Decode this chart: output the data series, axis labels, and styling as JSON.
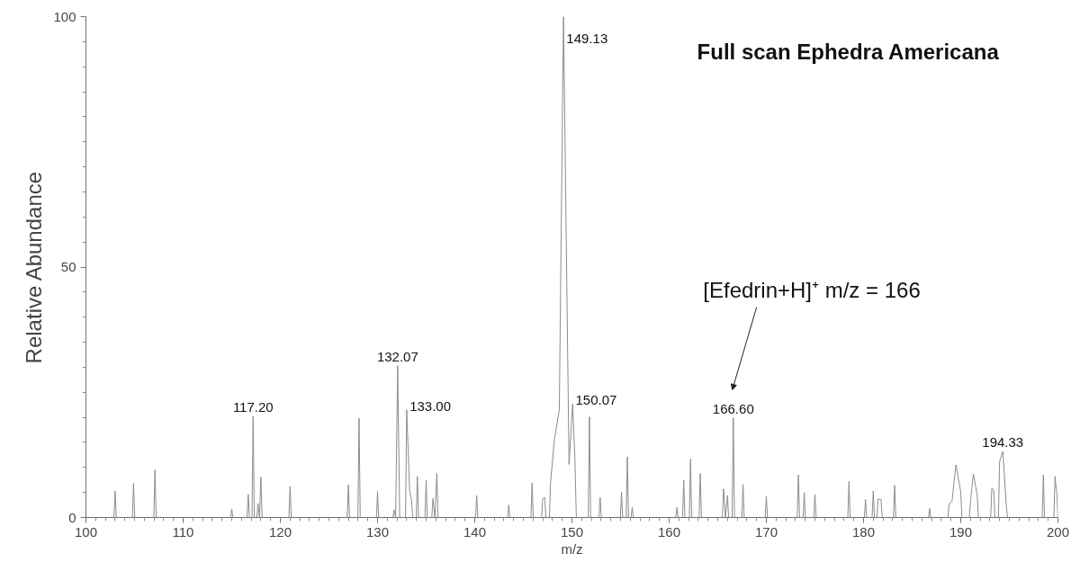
{
  "chart_data": {
    "type": "line",
    "title": "Full scan Ephedra Americana",
    "xlabel": "m/z",
    "ylabel": "Relative Abundance",
    "xlim": [
      100,
      200
    ],
    "ylim": [
      0,
      100
    ],
    "xticks": [
      100,
      {
        "value": 101,
        "label": null
      },
      {
        "value": 102,
        "label": null
      },
      {
        "value": 103,
        "label": null
      },
      {
        "value": 104,
        "label": null
      },
      {
        "value": 105,
        "label": null
      },
      {
        "value": 106,
        "label": null
      },
      {
        "value": 107,
        "label": null
      },
      {
        "value": 108,
        "label": null
      },
      {
        "value": 109,
        "label": null
      },
      110,
      {
        "value": 111,
        "label": null
      },
      {
        "value": 112,
        "label": null
      },
      {
        "value": 113,
        "label": null
      },
      {
        "value": 114,
        "label": null
      },
      {
        "value": 115,
        "label": null
      },
      {
        "value": 116,
        "label": null
      },
      {
        "value": 117,
        "label": null
      },
      {
        "value": 118,
        "label": null
      },
      {
        "value": 119,
        "label": null
      },
      120,
      {
        "value": 121,
        "label": null
      },
      {
        "value": 122,
        "label": null
      },
      {
        "value": 123,
        "label": null
      },
      {
        "value": 124,
        "label": null
      },
      {
        "value": 125,
        "label": null
      },
      {
        "value": 126,
        "label": null
      },
      {
        "value": 127,
        "label": null
      },
      {
        "value": 128,
        "label": null
      },
      {
        "value": 129,
        "label": null
      },
      130,
      {
        "value": 131,
        "label": null
      },
      {
        "value": 132,
        "label": null
      },
      {
        "value": 133,
        "label": null
      },
      {
        "value": 134,
        "label": null
      },
      {
        "value": 135,
        "label": null
      },
      {
        "value": 136,
        "label": null
      },
      {
        "value": 137,
        "label": null
      },
      {
        "value": 138,
        "label": null
      },
      {
        "value": 139,
        "label": null
      },
      140,
      {
        "value": 141,
        "label": null
      },
      {
        "value": 142,
        "label": null
      },
      {
        "value": 143,
        "label": null
      },
      {
        "value": 144,
        "label": null
      },
      {
        "value": 145,
        "label": null
      },
      {
        "value": 146,
        "label": null
      },
      {
        "value": 147,
        "label": null
      },
      {
        "value": 148,
        "label": null
      },
      {
        "value": 149,
        "label": null
      },
      150,
      {
        "value": 151,
        "label": null
      },
      {
        "value": 152,
        "label": null
      },
      {
        "value": 153,
        "label": null
      },
      {
        "value": 154,
        "label": null
      },
      {
        "value": 155,
        "label": null
      },
      {
        "value": 156,
        "label": null
      },
      {
        "value": 157,
        "label": null
      },
      {
        "value": 158,
        "label": null
      },
      {
        "value": 159,
        "label": null
      },
      160,
      {
        "value": 161,
        "label": null
      },
      {
        "value": 162,
        "label": null
      },
      {
        "value": 163,
        "label": null
      },
      {
        "value": 164,
        "label": null
      },
      {
        "value": 165,
        "label": null
      },
      {
        "value": 166,
        "label": null
      },
      {
        "value": 167,
        "label": null
      },
      {
        "value": 168,
        "label": null
      },
      {
        "value": 169,
        "label": null
      },
      170,
      {
        "value": 171,
        "label": null
      },
      {
        "value": 172,
        "label": null
      },
      {
        "value": 173,
        "label": null
      },
      {
        "value": 174,
        "label": null
      },
      {
        "value": 175,
        "label": null
      },
      {
        "value": 176,
        "label": null
      },
      {
        "value": 177,
        "label": null
      },
      {
        "value": 178,
        "label": null
      },
      {
        "value": 179,
        "label": null
      },
      180,
      {
        "value": 181,
        "label": null
      },
      {
        "value": 182,
        "label": null
      },
      {
        "value": 183,
        "label": null
      },
      {
        "value": 184,
        "label": null
      },
      {
        "value": 185,
        "label": null
      },
      {
        "value": 186,
        "label": null
      },
      {
        "value": 187,
        "label": null
      },
      {
        "value": 188,
        "label": null
      },
      {
        "value": 189,
        "label": null
      },
      190,
      {
        "value": 191,
        "label": null
      },
      {
        "value": 192,
        "label": null
      },
      {
        "value": 193,
        "label": null
      },
      {
        "value": 194,
        "label": null
      },
      {
        "value": 195,
        "label": null
      },
      {
        "value": 196,
        "label": null
      },
      {
        "value": 197,
        "label": null
      },
      {
        "value": 198,
        "label": null
      },
      {
        "value": 199,
        "label": null
      },
      200
    ],
    "yticks": [
      0,
      {
        "value": 5,
        "label": null
      },
      {
        "value": 10,
        "label": null
      },
      {
        "value": 15,
        "label": null
      },
      {
        "value": 20,
        "label": null
      },
      {
        "value": 25,
        "label": null
      },
      {
        "value": 30,
        "label": null
      },
      {
        "value": 35,
        "label": null
      },
      {
        "value": 40,
        "label": null
      },
      {
        "value": 45,
        "label": null
      },
      50,
      {
        "value": 55,
        "label": null
      },
      {
        "value": 60,
        "label": null
      },
      {
        "value": 65,
        "label": null
      },
      {
        "value": 70,
        "label": null
      },
      {
        "value": 75,
        "label": null
      },
      {
        "value": 80,
        "label": null
      },
      {
        "value": 85,
        "label": null
      },
      {
        "value": 90,
        "label": null
      },
      {
        "value": 95,
        "label": null
      },
      100
    ],
    "grid": false,
    "marker": "none",
    "line_style": "solid",
    "series": [
      {
        "color": "#8c8c8c",
        "x": [
          100,
          102.88,
          103.0,
          103.12,
          104.78,
          104.9,
          105.02,
          106.98,
          107.1,
          107.22,
          114.88,
          115.0,
          115.12,
          116.58,
          116.7,
          116.82,
          117.08,
          117.2,
          117.32,
          117.58,
          117.7,
          117.85,
          118.0,
          118.12,
          120.88,
          121.0,
          121.12,
          126.88,
          127.0,
          127.12,
          127.98,
          128.1,
          128.22,
          129.88,
          130.0,
          130.12,
          131.58,
          131.7,
          131.86,
          132.07,
          132.28,
          132.88,
          133.0,
          133.3,
          133.5,
          133.62,
          133.98,
          134.1,
          134.22,
          134.88,
          135.0,
          135.12,
          135.58,
          135.7,
          135.9,
          136.1,
          136.22,
          140.08,
          140.2,
          140.32,
          143.38,
          143.5,
          143.62,
          145.78,
          145.9,
          146.02,
          146.88,
          147.0,
          147.2,
          147.32,
          147.68,
          147.8,
          148.2,
          148.7,
          149.13,
          149.7,
          150.07,
          150.3,
          150.45,
          151.68,
          151.8,
          151.92,
          152.78,
          152.9,
          153.02,
          154.98,
          155.1,
          155.22,
          155.58,
          155.7,
          155.82,
          156.08,
          156.2,
          156.32,
          160.68,
          160.8,
          160.92,
          161.38,
          161.5,
          161.62,
          162.08,
          162.2,
          162.32,
          163.08,
          163.2,
          163.32,
          165.48,
          165.6,
          165.8,
          166.0,
          166.12,
          166.48,
          166.6,
          166.72,
          167.48,
          167.6,
          167.72,
          169.88,
          170.0,
          170.12,
          173.18,
          173.3,
          173.42,
          173.78,
          173.9,
          174.02,
          174.88,
          175.0,
          175.12,
          178.38,
          178.5,
          178.62,
          180.08,
          180.2,
          180.32,
          180.88,
          181.0,
          181.12,
          181.38,
          181.5,
          181.8,
          181.92,
          183.08,
          183.2,
          183.32,
          186.68,
          186.8,
          186.92,
          188.68,
          188.8,
          189.1,
          189.5,
          190.0,
          190.12,
          190.88,
          191.0,
          191.3,
          191.7,
          191.82,
          193.08,
          193.2,
          193.4,
          193.52,
          193.88,
          194.0,
          194.33,
          194.7,
          194.82,
          198.38,
          198.5,
          198.62,
          199.58,
          199.7,
          199.9,
          200
        ],
        "values": [
          0,
          0,
          5.3,
          0,
          0,
          6.8,
          0,
          0,
          9.5,
          0,
          0,
          1.7,
          0,
          0,
          4.6,
          0,
          0,
          20.2,
          0,
          0,
          2.8,
          0,
          8.1,
          0,
          0,
          6.2,
          0,
          0,
          6.5,
          0,
          0,
          19.8,
          0,
          0,
          5.2,
          0,
          0,
          1.5,
          0,
          30.3,
          0,
          0,
          21.5,
          5.4,
          3.5,
          0,
          0,
          8.2,
          0,
          0,
          7.4,
          0,
          0,
          3.8,
          0,
          8.8,
          0,
          0,
          4.4,
          0,
          0,
          2.5,
          0,
          0,
          6.9,
          0,
          0,
          3.8,
          4.0,
          0,
          0,
          7,
          15.6,
          21.5,
          100,
          10.6,
          22.7,
          12,
          0,
          0,
          20.1,
          0,
          0,
          4,
          0,
          0,
          5.1,
          0,
          0,
          12.1,
          0,
          0,
          2,
          0,
          0,
          2,
          0,
          0,
          7.5,
          0,
          0,
          11.7,
          0,
          0,
          8.8,
          0,
          0,
          5.7,
          0,
          4.4,
          0,
          0,
          19.9,
          0,
          0,
          6.6,
          0,
          0,
          4.2,
          0,
          0,
          8.5,
          0,
          0,
          5,
          0,
          0,
          4.6,
          0,
          0,
          7.2,
          0,
          0,
          3.6,
          0,
          0,
          5.3,
          0,
          0,
          3.7,
          3.6,
          0,
          0,
          6.4,
          0,
          0,
          1.8,
          0,
          0,
          2.7,
          3.2,
          10.5,
          5.1,
          0,
          0,
          3.2,
          8.7,
          4.4,
          0,
          0,
          5.9,
          5.4,
          0,
          0,
          11.2,
          13.2,
          2,
          0,
          0,
          8.5,
          0,
          0,
          8.2,
          4.3,
          0
        ]
      }
    ],
    "annotations": [
      {
        "text": "149.13",
        "x": 149.13,
        "y": 100
      },
      {
        "text": "132.07",
        "x": 132.07,
        "y": 30.3
      },
      {
        "text": "133.00",
        "x": 133.0,
        "y": 21.5
      },
      {
        "text": "117.20",
        "x": 117.2,
        "y": 20.2
      },
      {
        "text": "150.07",
        "x": 150.07,
        "y": 22.7
      },
      {
        "text": "166.60",
        "x": 166.6,
        "y": 19.9
      },
      {
        "text": "194.33",
        "x": 194.33,
        "y": 13.2
      },
      "[Efedrin+H]⁺ m/z = 166"
    ]
  }
}
